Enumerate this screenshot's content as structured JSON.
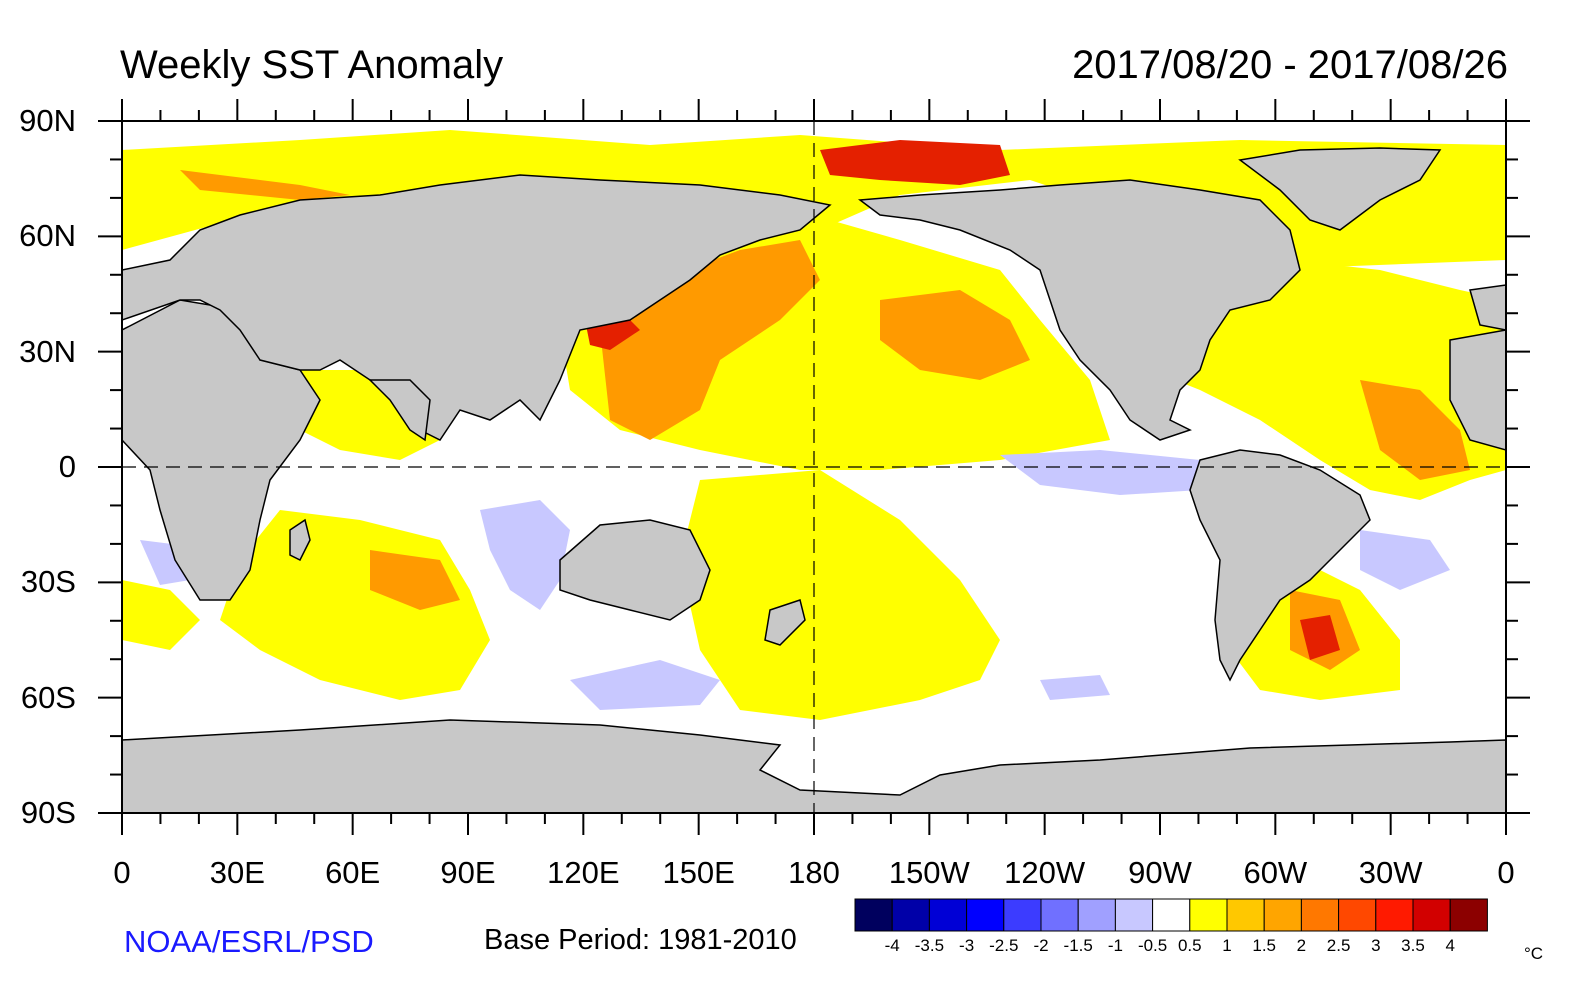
{
  "title": "Weekly SST Anomaly",
  "date_range": "2017/08/20 - 2017/08/26",
  "credit": "NOAA/ESRL/PSD",
  "base_period": "Base Period: 1981-2010",
  "lat_labels": [
    "90N",
    "60N",
    "30N",
    "0",
    "30S",
    "60S",
    "90S"
  ],
  "lon_labels": [
    "0",
    "30E",
    "60E",
    "90E",
    "120E",
    "150E",
    "180",
    "150W",
    "120W",
    "90W",
    "60W",
    "30W",
    "0"
  ],
  "legend": {
    "unit": "°C",
    "labels": [
      "-4",
      "-3.5",
      "-3",
      "-2.5",
      "-2",
      "-1.5",
      "-1",
      "-0.5",
      "0.5",
      "1",
      "1.5",
      "2",
      "2.5",
      "3",
      "3.5",
      "4"
    ],
    "colors": [
      "#00005e",
      "#0000a8",
      "#0000d6",
      "#0000ff",
      "#3c3cff",
      "#7070ff",
      "#a0a0ff",
      "#c8c8ff",
      "#ffffff",
      "#ffff00",
      "#ffc800",
      "#ffa500",
      "#ff7800",
      "#ff4800",
      "#ff1a00",
      "#d20000",
      "#8c0000"
    ]
  },
  "colors": {
    "land": "#c8c8c8",
    "ocean": "#ffffff",
    "warm_weak": "#ffff00",
    "warm_mid": "#ffc400",
    "warm_high": "#ff9a00",
    "warm_very_high": "#e42000",
    "cool_weak": "#c8c8ff",
    "cool_mid": "#9c9cf0"
  }
}
